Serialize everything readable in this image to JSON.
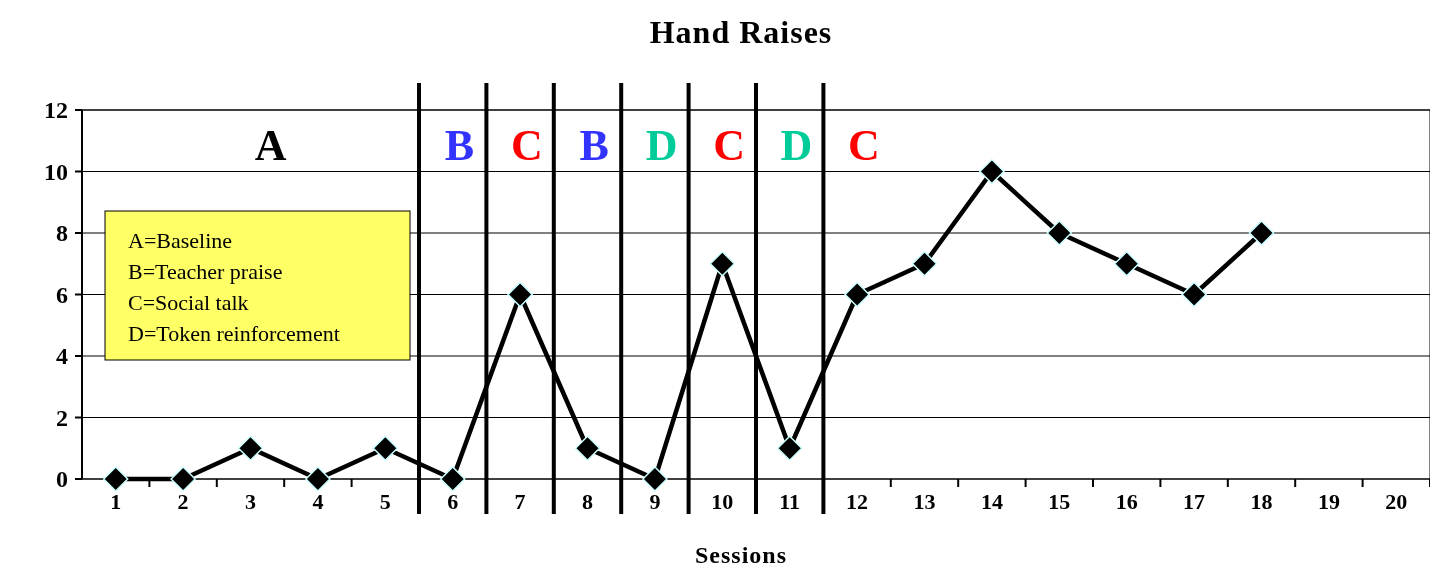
{
  "chart_data": {
    "type": "line",
    "title": "Hand Raises",
    "xlabel": "Sessions",
    "x": [
      1,
      2,
      3,
      4,
      5,
      6,
      7,
      8,
      9,
      10,
      11,
      12,
      13,
      14,
      15,
      16,
      17,
      18
    ],
    "series": [
      {
        "color": "#000000",
        "values": [
          0,
          0,
          1,
          0,
          1,
          0,
          6,
          1,
          0,
          7,
          1,
          6,
          7,
          10,
          8,
          7,
          6,
          8
        ]
      }
    ],
    "xlim": [
      0.5,
      20.5
    ],
    "xticks": [
      1,
      2,
      3,
      4,
      5,
      6,
      7,
      8,
      9,
      10,
      11,
      12,
      13,
      14,
      15,
      16,
      17,
      18,
      19,
      20
    ],
    "ylim": [
      0,
      12
    ],
    "yticks": [
      0,
      2,
      4,
      6,
      8,
      10,
      12
    ],
    "grid": "y",
    "marker": "diamond",
    "line_style": "solid",
    "ref_lines": [
      {
        "axis": "x",
        "value": 5.5,
        "color": "#000000"
      },
      {
        "axis": "x",
        "value": 6.5,
        "color": "#000000"
      },
      {
        "axis": "x",
        "value": 7.5,
        "color": "#000000"
      },
      {
        "axis": "x",
        "value": 8.5,
        "color": "#000000"
      },
      {
        "axis": "x",
        "value": 9.5,
        "color": "#000000"
      },
      {
        "axis": "x",
        "value": 10.5,
        "color": "#000000"
      },
      {
        "axis": "x",
        "value": 11.5,
        "color": "#000000"
      }
    ],
    "annotations": [
      "A",
      "B",
      "C",
      "B",
      "D",
      "C",
      "D",
      "C",
      "A=Baseline",
      "B=Teacher praise",
      "C=Social talk",
      "D=Token reinforcement"
    ]
  }
}
